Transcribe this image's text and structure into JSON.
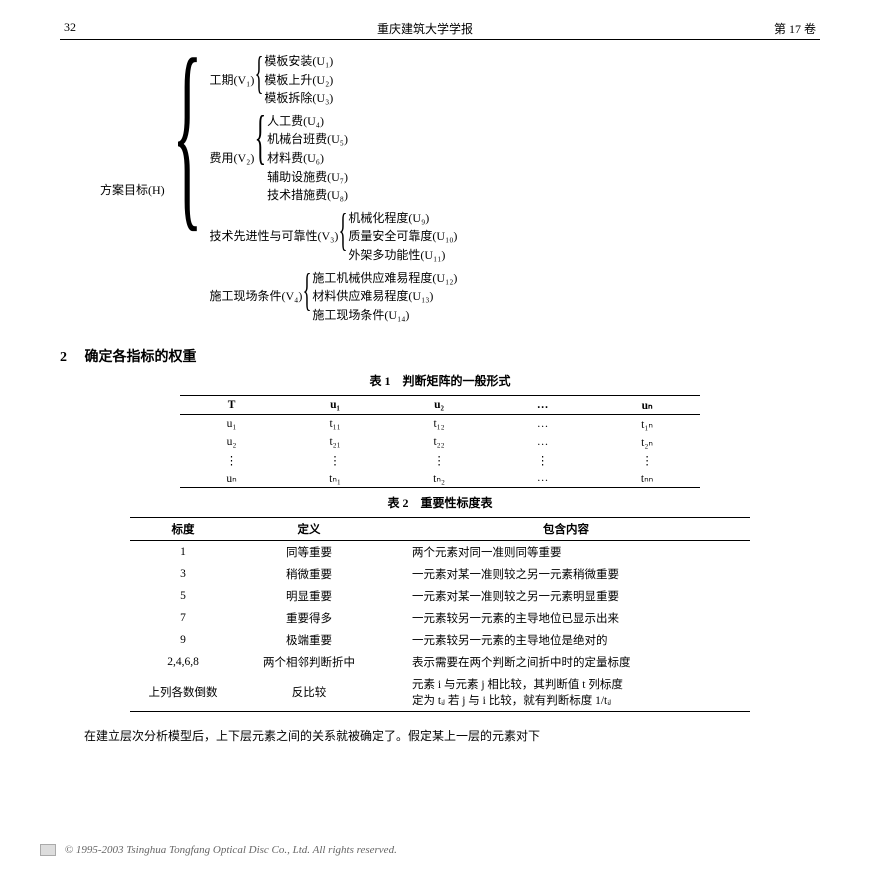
{
  "header": {
    "page_num": "32",
    "journal": "重庆建筑大学学报",
    "volume": "第 17 卷"
  },
  "hierarchy": {
    "root": "方案目标(H)",
    "groups": [
      {
        "label": "工期(V₁)",
        "items": [
          "模板安装(U₁)",
          "模板上升(U₂)",
          "模板拆除(U₃)"
        ]
      },
      {
        "label": "费用(V₂)",
        "items": [
          "人工费(U₄)",
          "机械台班费(U₅)",
          "材料费(U₆)",
          "辅助设施费(U₇)",
          "技术措施费(U₈)"
        ]
      },
      {
        "label": "技术先进性与可靠性(V₃)",
        "items": [
          "机械化程度(U₉)",
          "质量安全可靠度(U₁₀)",
          "外架多功能性(U₁₁)"
        ]
      },
      {
        "label": "施工现场条件(V₄)",
        "items": [
          "施工机械供应难易程度(U₁₂)",
          "材料供应难易程度(U₁₃)",
          "施工现场条件(U₁₄)"
        ]
      }
    ]
  },
  "section": {
    "num": "2",
    "title": "确定各指标的权重"
  },
  "table1": {
    "caption": "表 1　判断矩阵的一般形式",
    "head": [
      "T",
      "u₁",
      "u₂",
      "…",
      "uₙ"
    ],
    "rows": [
      [
        "u₁",
        "t₁₁",
        "t₁₂",
        "…",
        "t₁ₙ"
      ],
      [
        "u₂",
        "t₂₁",
        "t₂₂",
        "…",
        "t₂ₙ"
      ],
      [
        "⋮",
        "⋮",
        "⋮",
        "⋮",
        "⋮"
      ],
      [
        "uₙ",
        "tₙ₁",
        "tₙ₂",
        "…",
        "tₙₙ"
      ]
    ]
  },
  "table2": {
    "caption": "表 2　重要性标度表",
    "head": [
      "标度",
      "定义",
      "包含内容"
    ],
    "rows": [
      [
        "1",
        "同等重要",
        "两个元素对同一准则同等重要"
      ],
      [
        "3",
        "稍微重要",
        "一元素对某一准则较之另一元素稍微重要"
      ],
      [
        "5",
        "明显重要",
        "一元素对某一准则较之另一元素明显重要"
      ],
      [
        "7",
        "重要得多",
        "一元素较另一元素的主导地位已显示出来"
      ],
      [
        "9",
        "极端重要",
        "一元素较另一元素的主导地位是绝对的"
      ],
      [
        "2,4,6,8",
        "两个相邻判断折中",
        "表示需要在两个判断之间折中时的定量标度"
      ],
      [
        "上列各数倒数",
        "反比较",
        "元素 i 与元素 j 相比较，其判断值 t 列标度\n定为 tᵢⱼ 若 j 与 i 比较，就有判断标度 1/tᵢⱼ"
      ]
    ]
  },
  "paragraph": "在建立层次分析模型后，上下层元素之间的关系就被确定了。假定某上一层的元素对下",
  "footer": "© 1995-2003 Tsinghua Tongfang Optical Disc Co., Ltd.   All rights reserved."
}
